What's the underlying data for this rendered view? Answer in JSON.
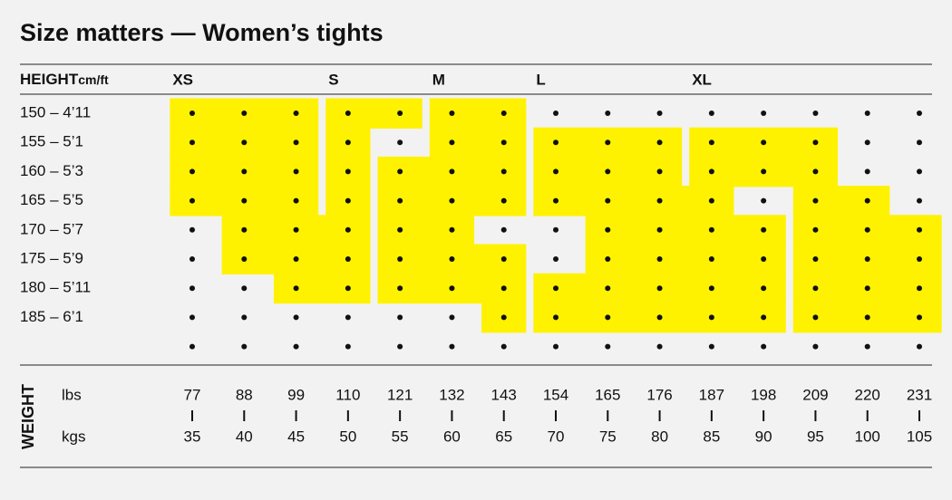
{
  "title": "Size matters — Women’s tights",
  "header": {
    "height": "HEIGHT",
    "height_unit": "cm/ft"
  },
  "heights": [
    "150 – 4’11",
    "155 – 5’1",
    "160 – 5’3",
    "165 – 5’5",
    "170 – 5’7",
    "175 – 5’9",
    "180 – 5’11",
    "185 – 6’1"
  ],
  "weight": {
    "label": "WEIGHT",
    "lbs_label": "lbs",
    "kgs_label": "kgs",
    "lbs": [
      77,
      88,
      99,
      110,
      121,
      132,
      143,
      154,
      165,
      176,
      187,
      198,
      209,
      220,
      231
    ],
    "kgs": [
      35,
      40,
      45,
      50,
      55,
      60,
      65,
      70,
      75,
      80,
      85,
      90,
      95,
      100,
      105
    ]
  },
  "sizes": [
    {
      "label": "XS",
      "rows": [
        [
          77,
          99
        ],
        [
          77,
          99
        ],
        [
          77,
          99
        ],
        [
          77,
          99
        ],
        null,
        null,
        null,
        null
      ]
    },
    {
      "label": "S",
      "rows": [
        [
          110,
          121
        ],
        [
          110,
          110
        ],
        [
          110,
          110
        ],
        [
          110,
          110
        ],
        [
          88,
          110
        ],
        [
          88,
          110
        ],
        [
          99,
          110
        ],
        null
      ]
    },
    {
      "label": "M",
      "rows": [
        [
          132,
          143
        ],
        [
          132,
          143
        ],
        [
          121,
          143
        ],
        [
          121,
          143
        ],
        [
          121,
          132
        ],
        [
          121,
          143
        ],
        [
          121,
          143
        ],
        [
          143,
          143
        ]
      ]
    },
    {
      "label": "L",
      "rows": [
        null,
        [
          154,
          176
        ],
        [
          154,
          176
        ],
        [
          154,
          187
        ],
        [
          165,
          198
        ],
        [
          165,
          198
        ],
        [
          154,
          198
        ],
        [
          154,
          198
        ]
      ]
    },
    {
      "label": "XL",
      "rows": [
        null,
        [
          187,
          209
        ],
        [
          187,
          209
        ],
        [
          209,
          220
        ],
        [
          209,
          231
        ],
        [
          209,
          231
        ],
        [
          209,
          231
        ],
        [
          209,
          231
        ]
      ]
    }
  ]
}
